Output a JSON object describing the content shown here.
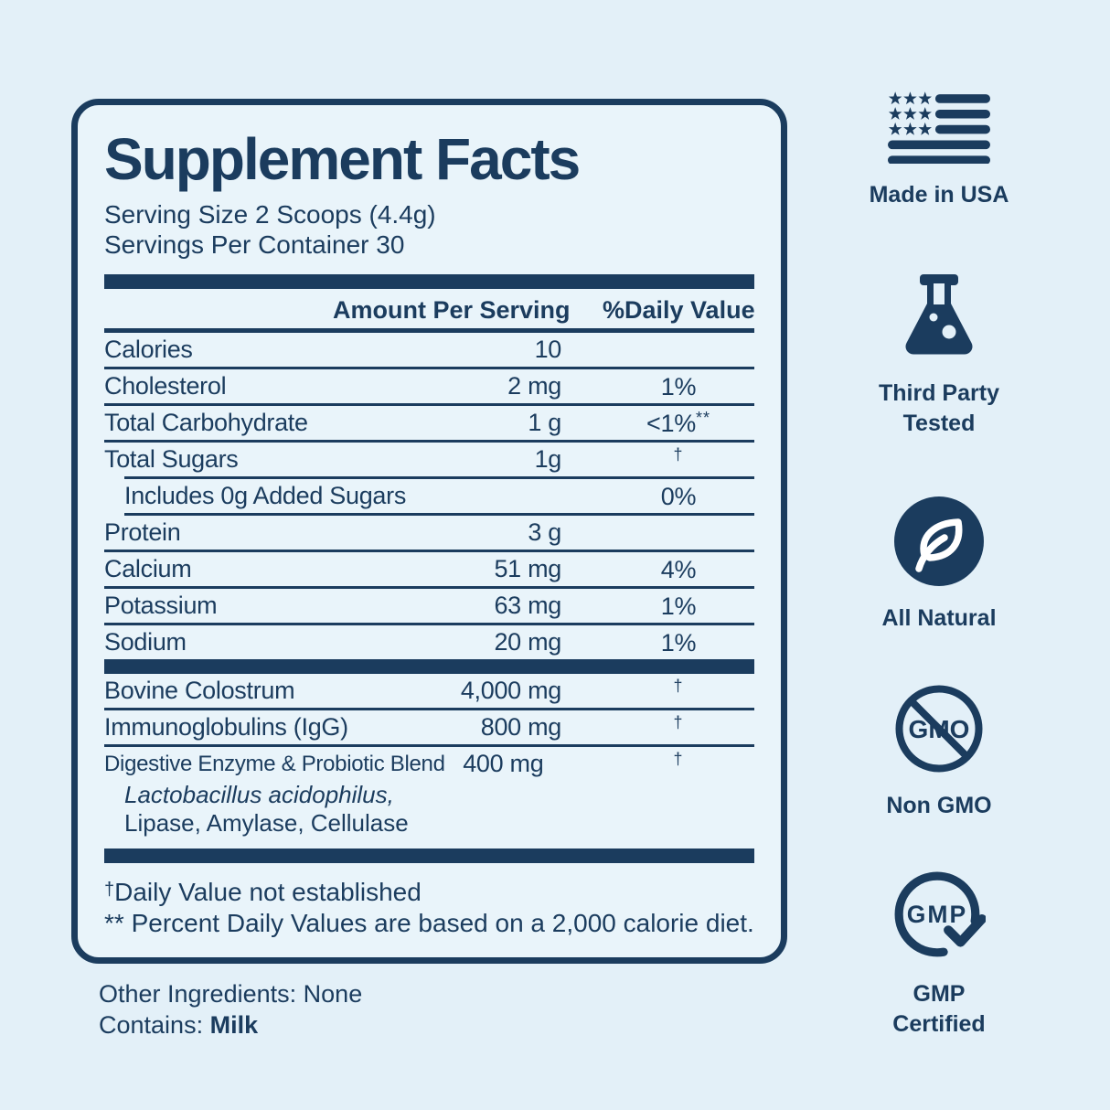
{
  "colors": {
    "navy": "#1b3c5e",
    "background": "#e3f0f8",
    "panel_background": "#e9f4fa"
  },
  "label": {
    "title": "Supplement Facts",
    "serving_size": "Serving Size 2 Scoops (4.4g)",
    "servings_per_container": "Servings Per Container 30",
    "columns": {
      "amount": "Amount Per Serving",
      "daily_value": "%Daily Value"
    },
    "items": [
      {
        "type": "row",
        "name": "Calories",
        "amount": "10",
        "dv": "",
        "dv_sup": ""
      },
      {
        "type": "row",
        "name": "Cholesterol",
        "amount": "2 mg",
        "dv": "1%",
        "dv_sup": ""
      },
      {
        "type": "row",
        "name": "Total Carbohydrate",
        "amount": "1 g",
        "dv": "<1%",
        "dv_sup": "**"
      },
      {
        "type": "row",
        "name": "Total Sugars",
        "amount": "1g",
        "dv": "",
        "dv_sup": "†"
      },
      {
        "type": "row",
        "name": "Includes 0g Added Sugars",
        "amount": "",
        "dv": "0%",
        "dv_sup": "",
        "indent": true
      },
      {
        "type": "row",
        "name": "Protein",
        "amount": "3 g",
        "dv": "",
        "dv_sup": ""
      },
      {
        "type": "row",
        "name": "Calcium",
        "amount": "51 mg",
        "dv": "4%",
        "dv_sup": ""
      },
      {
        "type": "row",
        "name": "Potassium",
        "amount": "63 mg",
        "dv": "1%",
        "dv_sup": ""
      },
      {
        "type": "row",
        "name": "Sodium",
        "amount": "20 mg",
        "dv": "1%",
        "dv_sup": ""
      },
      {
        "type": "bar"
      },
      {
        "type": "row",
        "name": "Bovine Colostrum",
        "amount": "4,000 mg",
        "dv": "",
        "dv_sup": "†"
      },
      {
        "type": "row",
        "name": "Immunoglobulins (IgG)",
        "amount": "800 mg",
        "dv": "",
        "dv_sup": "†"
      },
      {
        "type": "row",
        "name": "Digestive Enzyme & Probiotic Blend",
        "amount": "400 mg",
        "dv": "",
        "dv_sup": "†",
        "wide": true,
        "sublines": [
          {
            "text": "Lactobacillus acidophilus,",
            "italic": true
          },
          {
            "text": "Lipase, Amylase, Cellulase",
            "italic": false
          }
        ]
      },
      {
        "type": "bar"
      }
    ],
    "footnotes": [
      {
        "sup": "†",
        "text": "Daily Value not established"
      },
      {
        "sup": "**",
        "text": " Percent Daily Values are based on a 2,000 calorie diet."
      }
    ],
    "other_ingredients_label": "Other Ingredients:",
    "other_ingredients_value": "None",
    "contains_label": "Contains:",
    "contains_value": "Milk"
  },
  "badges": {
    "usa": {
      "icon": "usa-flag-icon",
      "label": "Made in USA"
    },
    "tested": {
      "icon": "lab-flask-icon",
      "label1": "Third Party",
      "label2": "Tested"
    },
    "natural": {
      "icon": "leaf-circle-icon",
      "label": "All Natural"
    },
    "gmo": {
      "icon": "no-gmo-icon",
      "icon_text": "GMO",
      "label": "Non GMO"
    },
    "gmp": {
      "icon": "gmp-check-icon",
      "icon_text": "GMP",
      "label1": "GMP",
      "label2": "Certified"
    }
  }
}
